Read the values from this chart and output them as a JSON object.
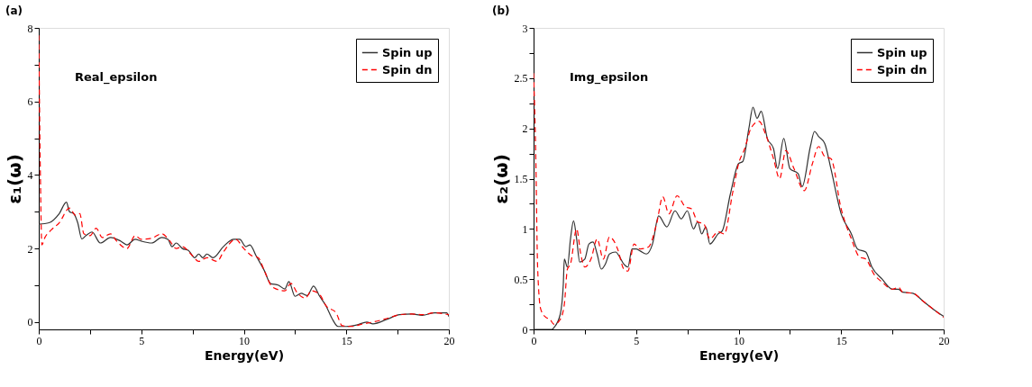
{
  "chart_data": [
    {
      "type": "line",
      "title": "(a)",
      "xlabel": "Energy(eV)",
      "ylabel": "ε₁(ω)",
      "annotations": [
        "Real_epsilon"
      ],
      "legend": "top right",
      "grid": false,
      "xlim": [
        0,
        20
      ],
      "xticks": [
        0,
        {
          "value": 2.5,
          "label": null
        },
        5,
        {
          "value": 7.5,
          "label": null
        },
        10,
        {
          "value": 12.5,
          "label": null
        },
        15,
        {
          "value": 17.5,
          "label": null
        },
        20
      ],
      "ylim": [
        -0.2,
        8
      ],
      "yticks": [
        0,
        {
          "value": 1,
          "label": null
        },
        2,
        {
          "value": 3,
          "label": null
        },
        4,
        {
          "value": 5,
          "label": null
        },
        6,
        {
          "value": 7,
          "label": null
        },
        8
      ],
      "series": [
        {
          "name": "Spin up",
          "color": "#333333",
          "line_style": "solid",
          "x": [
            0,
            0.5,
            1.0,
            1.35,
            1.5,
            1.7,
            1.9,
            2.1,
            2.3,
            2.6,
            3.0,
            3.5,
            4.0,
            4.3,
            4.7,
            5.0,
            5.5,
            6.0,
            6.3,
            6.5,
            6.7,
            7.0,
            7.3,
            7.6,
            7.8,
            8.0,
            8.2,
            8.5,
            9.0,
            9.5,
            9.8,
            10.1,
            10.3,
            10.6,
            11.0,
            11.3,
            11.7,
            12.0,
            12.2,
            12.5,
            12.8,
            13.1,
            13.4,
            13.7,
            14.0,
            14.3,
            14.6,
            15.0,
            15.5,
            16.0,
            16.3,
            17.0,
            17.6,
            18.2,
            18.7,
            19.3,
            19.9,
            20
          ],
          "values": [
            2.66,
            2.7,
            2.95,
            3.26,
            3.0,
            2.95,
            2.7,
            2.26,
            2.35,
            2.45,
            2.15,
            2.3,
            2.2,
            2.1,
            2.25,
            2.2,
            2.15,
            2.3,
            2.25,
            2.05,
            2.15,
            2.0,
            1.95,
            1.75,
            1.85,
            1.75,
            1.85,
            1.75,
            2.05,
            2.25,
            2.25,
            2.05,
            2.1,
            1.8,
            1.4,
            1.05,
            1.0,
            0.9,
            1.1,
            0.7,
            0.78,
            0.72,
            0.98,
            0.7,
            0.45,
            0.1,
            -0.12,
            -0.12,
            -0.08,
            0.0,
            -0.05,
            0.08,
            0.2,
            0.22,
            0.18,
            0.25,
            0.25,
            0.15
          ]
        },
        {
          "name": "Spin dn",
          "color": "#ff0000",
          "line_style": "dashed",
          "x": [
            0,
            0.08,
            0.15,
            0.3,
            0.6,
            1.0,
            1.5,
            1.8,
            2.0,
            2.2,
            2.5,
            2.8,
            3.1,
            3.5,
            3.8,
            4.3,
            4.7,
            5.0,
            5.5,
            6.0,
            6.4,
            6.7,
            7.0,
            7.5,
            7.8,
            8.2,
            8.7,
            9.0,
            9.6,
            10.0,
            10.4,
            10.7,
            11.0,
            11.4,
            12.0,
            12.3,
            12.6,
            13.0,
            13.3,
            13.7,
            14.0,
            14.5,
            14.8,
            15.3,
            15.8,
            16.3,
            17.0,
            17.6,
            18.2,
            18.7,
            19.3,
            20
          ],
          "values": [
            7.8,
            4.0,
            2.1,
            2.3,
            2.5,
            2.7,
            3.1,
            2.9,
            2.95,
            2.4,
            2.35,
            2.55,
            2.3,
            2.4,
            2.2,
            2.0,
            2.35,
            2.25,
            2.28,
            2.4,
            2.2,
            2.0,
            2.05,
            1.8,
            1.65,
            1.75,
            1.65,
            1.9,
            2.25,
            2.0,
            1.8,
            1.75,
            1.4,
            0.95,
            0.85,
            1.05,
            0.8,
            0.65,
            0.85,
            0.75,
            0.45,
            0.25,
            -0.1,
            -0.12,
            -0.05,
            0.0,
            0.1,
            0.2,
            0.22,
            0.2,
            0.25,
            0.2
          ]
        }
      ]
    },
    {
      "type": "line",
      "title": "(b)",
      "xlabel": "Energy(eV)",
      "ylabel": "ε₂(ω)",
      "annotations": [
        "Img_epsilon"
      ],
      "legend": "top right",
      "grid": false,
      "xlim": [
        0,
        20
      ],
      "xticks": [
        0,
        {
          "value": 2.5,
          "label": null
        },
        5,
        {
          "value": 7.5,
          "label": null
        },
        10,
        {
          "value": 12.5,
          "label": null
        },
        15,
        {
          "value": 17.5,
          "label": null
        },
        20
      ],
      "ylim": [
        0,
        3
      ],
      "yticks": [
        0,
        {
          "value": 0.25,
          "label": null
        },
        0.5,
        {
          "value": 0.75,
          "label": null
        },
        1,
        {
          "value": 1.25,
          "label": null
        },
        1.5,
        {
          "value": 1.75,
          "label": null
        },
        2,
        {
          "value": 2.25,
          "label": null
        },
        2.5,
        {
          "value": 2.75,
          "label": null
        },
        3
      ],
      "series": [
        {
          "name": "Spin up",
          "color": "#333333",
          "line_style": "solid",
          "x": [
            0,
            0.9,
            1.0,
            1.3,
            1.45,
            1.5,
            1.65,
            1.8,
            1.95,
            2.1,
            2.25,
            2.5,
            2.7,
            2.9,
            3.1,
            3.3,
            3.5,
            3.7,
            4.0,
            4.2,
            4.4,
            4.6,
            4.8,
            5.0,
            5.2,
            5.5,
            5.8,
            6.1,
            6.5,
            6.9,
            7.2,
            7.5,
            7.8,
            8.0,
            8.2,
            8.4,
            8.6,
            9.0,
            9.2,
            9.6,
            10.0,
            10.2,
            10.5,
            10.7,
            10.9,
            11.1,
            11.4,
            11.7,
            11.9,
            12.2,
            12.5,
            12.9,
            13.1,
            13.5,
            13.7,
            13.9,
            14.2,
            14.5,
            15.0,
            15.5,
            15.8,
            16.2,
            16.5,
            17.0,
            17.5,
            17.8,
            18.0,
            18.5,
            19.0,
            19.5,
            20.0
          ],
          "values": [
            0,
            0,
            0.02,
            0.15,
            0.45,
            0.7,
            0.62,
            0.9,
            1.08,
            0.9,
            0.67,
            0.7,
            0.85,
            0.87,
            0.75,
            0.6,
            0.65,
            0.75,
            0.77,
            0.72,
            0.65,
            0.62,
            0.8,
            0.8,
            0.78,
            0.75,
            0.85,
            1.13,
            1.02,
            1.18,
            1.1,
            1.18,
            1.0,
            1.07,
            0.95,
            1.02,
            0.85,
            0.95,
            0.98,
            1.35,
            1.65,
            1.67,
            2.0,
            2.21,
            2.1,
            2.17,
            1.9,
            1.8,
            1.6,
            1.9,
            1.6,
            1.55,
            1.42,
            1.82,
            1.97,
            1.92,
            1.85,
            1.6,
            1.15,
            0.95,
            0.8,
            0.77,
            0.62,
            0.5,
            0.4,
            0.4,
            0.37,
            0.36,
            0.28,
            0.2,
            0.13
          ]
        },
        {
          "name": "Spin dn",
          "color": "#ff0000",
          "line_style": "dashed",
          "x": [
            0,
            0.1,
            0.2,
            0.35,
            0.6,
            0.8,
            1.0,
            1.3,
            1.5,
            1.65,
            1.8,
            2.1,
            2.3,
            2.5,
            2.8,
            3.1,
            3.4,
            3.7,
            4.1,
            4.4,
            4.6,
            4.9,
            5.2,
            5.6,
            6.0,
            6.3,
            6.6,
            7.0,
            7.4,
            7.7,
            8.0,
            8.3,
            8.6,
            9.0,
            9.3,
            9.7,
            10.0,
            10.3,
            10.6,
            11.0,
            11.3,
            11.7,
            12.0,
            12.3,
            12.7,
            13.2,
            13.6,
            13.9,
            14.2,
            14.5,
            15.0,
            15.5,
            15.9,
            16.2,
            16.6,
            17.0,
            17.5,
            17.8,
            18.0,
            18.5,
            19.0,
            19.5,
            20.0
          ],
          "values": [
            2.55,
            1.8,
            0.6,
            0.2,
            0.12,
            0.1,
            0.05,
            0.1,
            0.25,
            0.6,
            0.65,
            1.0,
            0.75,
            0.62,
            0.7,
            0.9,
            0.7,
            0.92,
            0.8,
            0.6,
            0.58,
            0.85,
            0.8,
            0.82,
            1.05,
            1.32,
            1.15,
            1.33,
            1.22,
            1.2,
            1.07,
            1.05,
            0.9,
            0.97,
            0.95,
            1.35,
            1.65,
            1.8,
            2.0,
            2.07,
            1.95,
            1.7,
            1.5,
            1.78,
            1.6,
            1.38,
            1.65,
            1.82,
            1.72,
            1.7,
            1.2,
            0.9,
            0.72,
            0.7,
            0.55,
            0.47,
            0.4,
            0.42,
            0.37,
            0.36,
            0.28,
            0.2,
            0.12
          ]
        }
      ]
    }
  ]
}
